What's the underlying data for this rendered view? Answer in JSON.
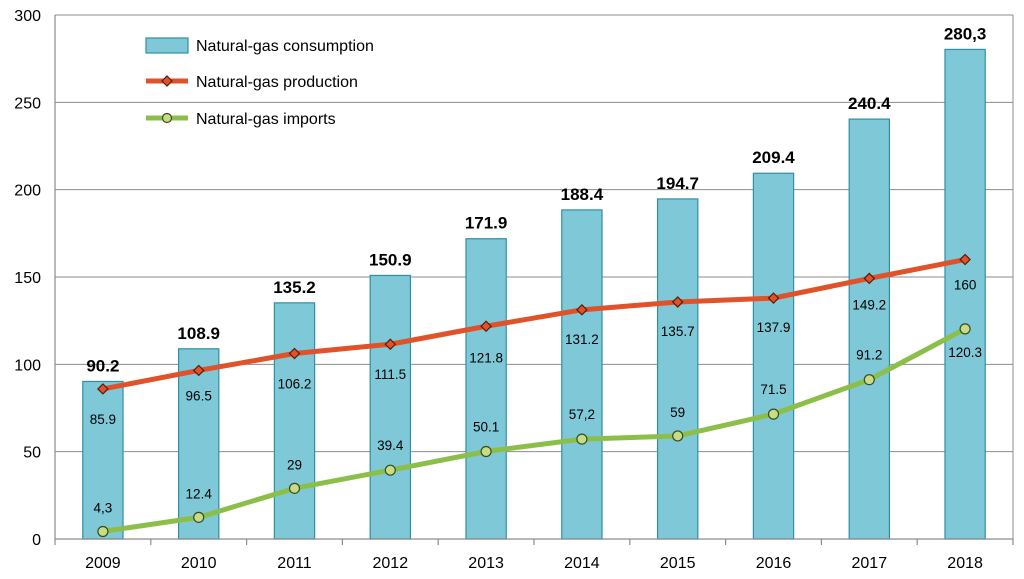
{
  "chart_data": {
    "type": "bar",
    "categories": [
      "2009",
      "2010",
      "2011",
      "2012",
      "2013",
      "2014",
      "2015",
      "2016",
      "2017",
      "2018"
    ],
    "series": [
      {
        "name": "Natural-gas consumption",
        "kind": "bar",
        "color": "#7ec8d8",
        "values": [
          90.2,
          108.9,
          135.2,
          150.9,
          171.9,
          188.4,
          194.7,
          209.4,
          240.4,
          280.3
        ],
        "labels": [
          "90.2",
          "108.9",
          "135.2",
          "150.9",
          "171.9",
          "188.4",
          "194.7",
          "209.4",
          "240.4",
          "280,3"
        ]
      },
      {
        "name": "Natural-gas production",
        "kind": "line",
        "color": "#e0522a",
        "marker": "diamond",
        "values": [
          85.9,
          96.5,
          106.2,
          111.5,
          121.8,
          131.2,
          135.7,
          137.9,
          149.2,
          160
        ],
        "labels": [
          "85.9",
          "96.5",
          "106.2",
          "111.5",
          "121.8",
          "131.2",
          "135.7",
          "137.9",
          "149.2",
          "160"
        ]
      },
      {
        "name": "Natural-gas imports",
        "kind": "line",
        "color": "#8cbf4a",
        "marker": "circle",
        "values": [
          4.3,
          12.4,
          29,
          39.4,
          50.1,
          57.2,
          59,
          71.5,
          91.2,
          120.3
        ],
        "labels": [
          "4,3",
          "12.4",
          "29",
          "39.4",
          "50.1",
          "57,2",
          "59",
          "71.5",
          "91.2",
          "120.3"
        ]
      }
    ],
    "yticks": [
      "0",
      "50",
      "100",
      "150",
      "200",
      "250",
      "300"
    ],
    "ylim": [
      0,
      300
    ],
    "grid": true,
    "legend_position": "top-left",
    "title": "",
    "xlabel": "",
    "ylabel": ""
  }
}
